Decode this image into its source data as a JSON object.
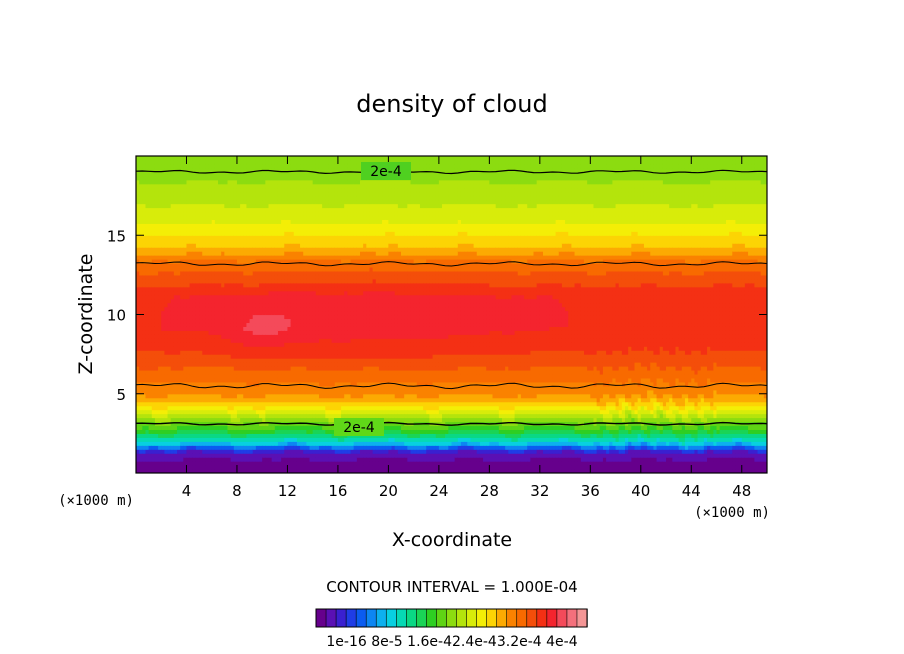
{
  "chart_data": {
    "type": "heatmap",
    "title": "density of cloud",
    "xlabel": "X-coordinate",
    "ylabel": "Z-coordinate",
    "x_unit_left": "(×1000 m)",
    "x_unit_right": "(×1000 m)",
    "xlim": [
      0,
      50
    ],
    "ylim": [
      0,
      20
    ],
    "x_ticks": [
      4,
      8,
      12,
      16,
      20,
      24,
      28,
      32,
      36,
      40,
      44,
      48
    ],
    "y_ticks": [
      5,
      10,
      15
    ],
    "contour_label_upper": "2e-4",
    "contour_label_lower": "2e-4",
    "contour_interval_text": "CONTOUR INTERVAL = 1.000E-04",
    "colorbar_labels": [
      "1e-16",
      "8e-5",
      "1.6e-4",
      "2.4e-4",
      "3.2e-4",
      "4e-4"
    ],
    "colorbar_label_text": "1e-16 8e-5 1.6e-42.4e-43.2e-4 4e-4",
    "colorbar_colors": [
      "#66008c",
      "#5a10b4",
      "#3a20d0",
      "#1f3de6",
      "#0b5cf0",
      "#0d86f2",
      "#0db0ee",
      "#08d0e0",
      "#06d9b4",
      "#0ad884",
      "#1ad456",
      "#2ecf22",
      "#5fd414",
      "#8cdc10",
      "#b4e40c",
      "#d8ec0a",
      "#f4ee06",
      "#fcd404",
      "#fcaa02",
      "#fa8200",
      "#f86a00",
      "#f44e0a",
      "#f43014",
      "#f4242e",
      "#f44a5a",
      "#f4707c",
      "#f49696"
    ],
    "contour_levels": [
      0.0001,
      0.0002,
      0.0003,
      0.0004
    ],
    "profile_z": [
      0.3,
      1.2,
      1.8,
      2.6,
      3.2,
      4.2,
      5.0,
      6.0,
      7.0,
      9.0,
      11.0,
      12.0,
      13.2,
      14.0,
      15.0,
      16.0,
      17.0,
      18.0,
      19.0,
      20.0
    ],
    "profile_value": [
      0.0,
      3e-05,
      0.00011,
      0.00017,
      0.0002,
      0.00026,
      0.00029,
      0.0003,
      0.00032,
      0.00034,
      0.00034,
      0.00032,
      0.0003,
      0.00027,
      0.00025,
      0.00023,
      0.00022,
      0.00021,
      0.0002,
      0.0002
    ]
  }
}
